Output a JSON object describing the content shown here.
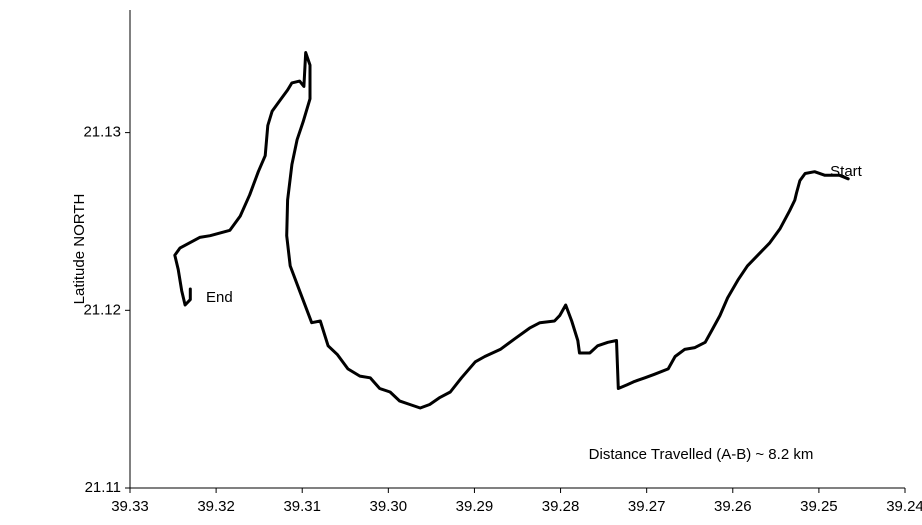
{
  "chart_data": {
    "type": "line",
    "y_label": "Latitude NORTH",
    "annotations": [
      "Start",
      "End",
      "Distance Travelled (A-B) ~ 8.2 km"
    ],
    "xlim": [
      39.33,
      39.24
    ],
    "ylim": [
      21.11,
      21.1369
    ],
    "xticks": [
      39.33,
      39.32,
      39.31,
      {
        "value": 39.3,
        "label": "39.30"
      },
      39.29,
      39.28,
      39.27,
      39.26,
      39.25,
      39.24
    ],
    "yticks": [
      21.11,
      21.12,
      21.13
    ],
    "series": [
      {
        "color": "#000000",
        "x": [
          39.2466,
          39.2476,
          39.2493,
          39.2505,
          39.2516,
          39.2522,
          39.2526,
          39.2528,
          39.2534,
          39.2545,
          39.2557,
          39.2571,
          39.2583,
          39.2594,
          39.2606,
          39.2615,
          39.2624,
          39.2632,
          39.2644,
          39.2656,
          39.2667,
          39.2675,
          39.2691,
          39.2702,
          39.2714,
          39.2723,
          39.2733,
          39.2735,
          39.2745,
          39.2757,
          39.2766,
          39.2778,
          39.278,
          39.2787,
          39.2794,
          39.2801,
          39.2807,
          39.2824,
          39.2836,
          39.2853,
          39.287,
          39.2888,
          39.2899,
          39.2915,
          39.2928,
          39.294,
          39.2952,
          39.2963,
          39.2975,
          39.2987,
          39.2998,
          39.301,
          39.3021,
          39.3033,
          39.3047,
          39.3059,
          39.307,
          39.3079,
          39.3089,
          39.3103,
          39.3114,
          39.3118,
          39.3117,
          39.3112,
          39.3106,
          39.3099,
          39.3091,
          39.3091,
          39.3096,
          39.3098,
          39.3103,
          39.3112,
          39.3117,
          39.3126,
          39.3135,
          39.314,
          39.3143,
          39.3151,
          39.3161,
          39.3172,
          39.3184,
          39.3207,
          39.3219,
          39.3242,
          39.3248,
          39.3244,
          39.324,
          39.3236,
          39.323,
          39.323
        ],
        "values": [
          21.1274,
          21.1276,
          21.1276,
          21.1278,
          21.1277,
          21.1273,
          21.1266,
          21.1262,
          21.1256,
          21.1246,
          21.1238,
          21.1231,
          21.1225,
          21.1217,
          21.1207,
          21.1197,
          21.1189,
          21.1182,
          21.1179,
          21.1178,
          21.1174,
          21.1167,
          21.1164,
          21.1162,
          21.116,
          21.1158,
          21.1156,
          21.1183,
          21.1182,
          21.118,
          21.1176,
          21.1176,
          21.1183,
          21.1194,
          21.1203,
          21.1197,
          21.1194,
          21.1193,
          21.119,
          21.1184,
          21.1178,
          21.1174,
          21.1171,
          21.1162,
          21.1154,
          21.1151,
          21.1147,
          21.1145,
          21.1147,
          21.1149,
          21.1154,
          21.1156,
          21.1162,
          21.1163,
          21.1167,
          21.1175,
          21.118,
          21.1194,
          21.1193,
          21.1211,
          21.1225,
          21.1242,
          21.1262,
          21.1282,
          21.1296,
          21.1306,
          21.1319,
          21.1338,
          21.1345,
          21.1326,
          21.1329,
          21.1328,
          21.1324,
          21.1318,
          21.1312,
          21.1304,
          21.1287,
          21.1278,
          21.1265,
          21.1253,
          21.1245,
          21.1242,
          21.1241,
          21.1235,
          21.1231,
          21.1223,
          21.1211,
          21.1203,
          21.1206,
          21.1212
        ]
      }
    ]
  }
}
